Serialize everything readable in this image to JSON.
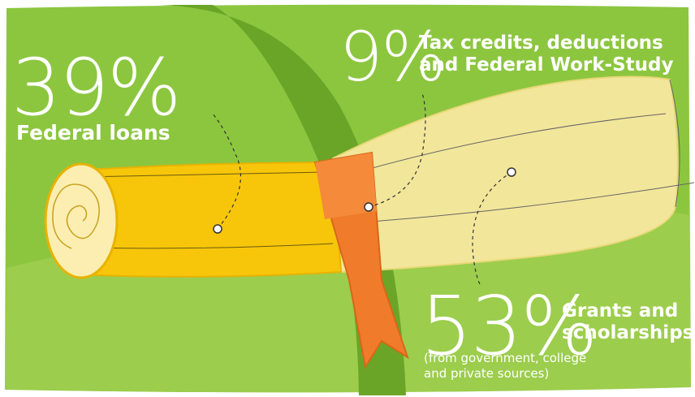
{
  "segments": [
    {
      "percent": "39%",
      "label": "Federal loans"
    },
    {
      "percent": "9%",
      "label_line1": "Tax credits, deductions",
      "label_line2": "and Federal Work-Study"
    },
    {
      "percent": "53%",
      "label_line1": "Grants and",
      "label_line2": "scholarships",
      "note_line1": "(from government, college",
      "note_line2": "and private sources)"
    }
  ],
  "colors": {
    "background_green": "#8cc63f",
    "arc_green": "#6aa528",
    "scroll_yellow": "#f7c60a",
    "scroll_light": "#f2e69a",
    "ribbon_orange": "#f07b2a",
    "text": "#ffffff"
  }
}
